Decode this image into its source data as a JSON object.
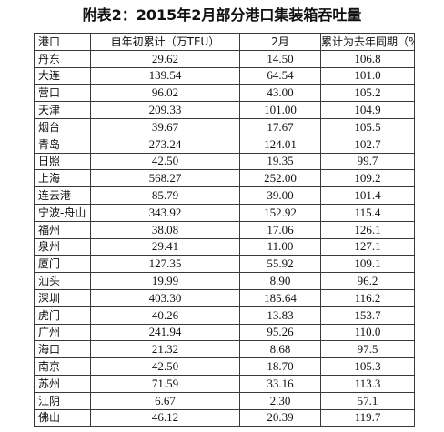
{
  "title": "附表2：2015年2月部分港口集装箱吞吐量",
  "table": {
    "headers": [
      "港口",
      "自年初累计（万TEU）",
      "2月",
      "累计为去年同期（%）"
    ],
    "rows": [
      [
        "丹东",
        "29.62",
        "14.50",
        "106.8"
      ],
      [
        "大连",
        "139.54",
        "64.54",
        "101.0"
      ],
      [
        "营口",
        "96.02",
        "43.00",
        "105.2"
      ],
      [
        "天津",
        "209.33",
        "101.00",
        "104.9"
      ],
      [
        "烟台",
        "39.67",
        "17.67",
        "105.5"
      ],
      [
        "青岛",
        "273.24",
        "124.01",
        "102.7"
      ],
      [
        "日照",
        "42.50",
        "19.35",
        "99.7"
      ],
      [
        "上海",
        "568.27",
        "252.00",
        "109.2"
      ],
      [
        "连云港",
        "85.79",
        "39.00",
        "101.4"
      ],
      [
        "宁波-舟山",
        "343.92",
        "152.92",
        "115.4"
      ],
      [
        "福州",
        "38.08",
        "17.06",
        "126.1"
      ],
      [
        "泉州",
        "29.41",
        "11.00",
        "127.1"
      ],
      [
        "厦门",
        "127.35",
        "55.92",
        "109.1"
      ],
      [
        "汕头",
        "19.99",
        "8.90",
        "96.2"
      ],
      [
        "深圳",
        "403.30",
        "185.64",
        "116.2"
      ],
      [
        "虎门",
        "40.26",
        "13.83",
        "153.7"
      ],
      [
        "广州",
        "241.94",
        "95.26",
        "110.0"
      ],
      [
        "海口",
        "21.32",
        "8.68",
        "97.5"
      ],
      [
        "南京",
        "42.50",
        "18.70",
        "105.3"
      ],
      [
        "苏州",
        "71.59",
        "33.16",
        "113.3"
      ],
      [
        "江阴",
        "6.67",
        "2.30",
        "57.1"
      ],
      [
        "佛山",
        "46.12",
        "20.39",
        "119.7"
      ]
    ]
  }
}
